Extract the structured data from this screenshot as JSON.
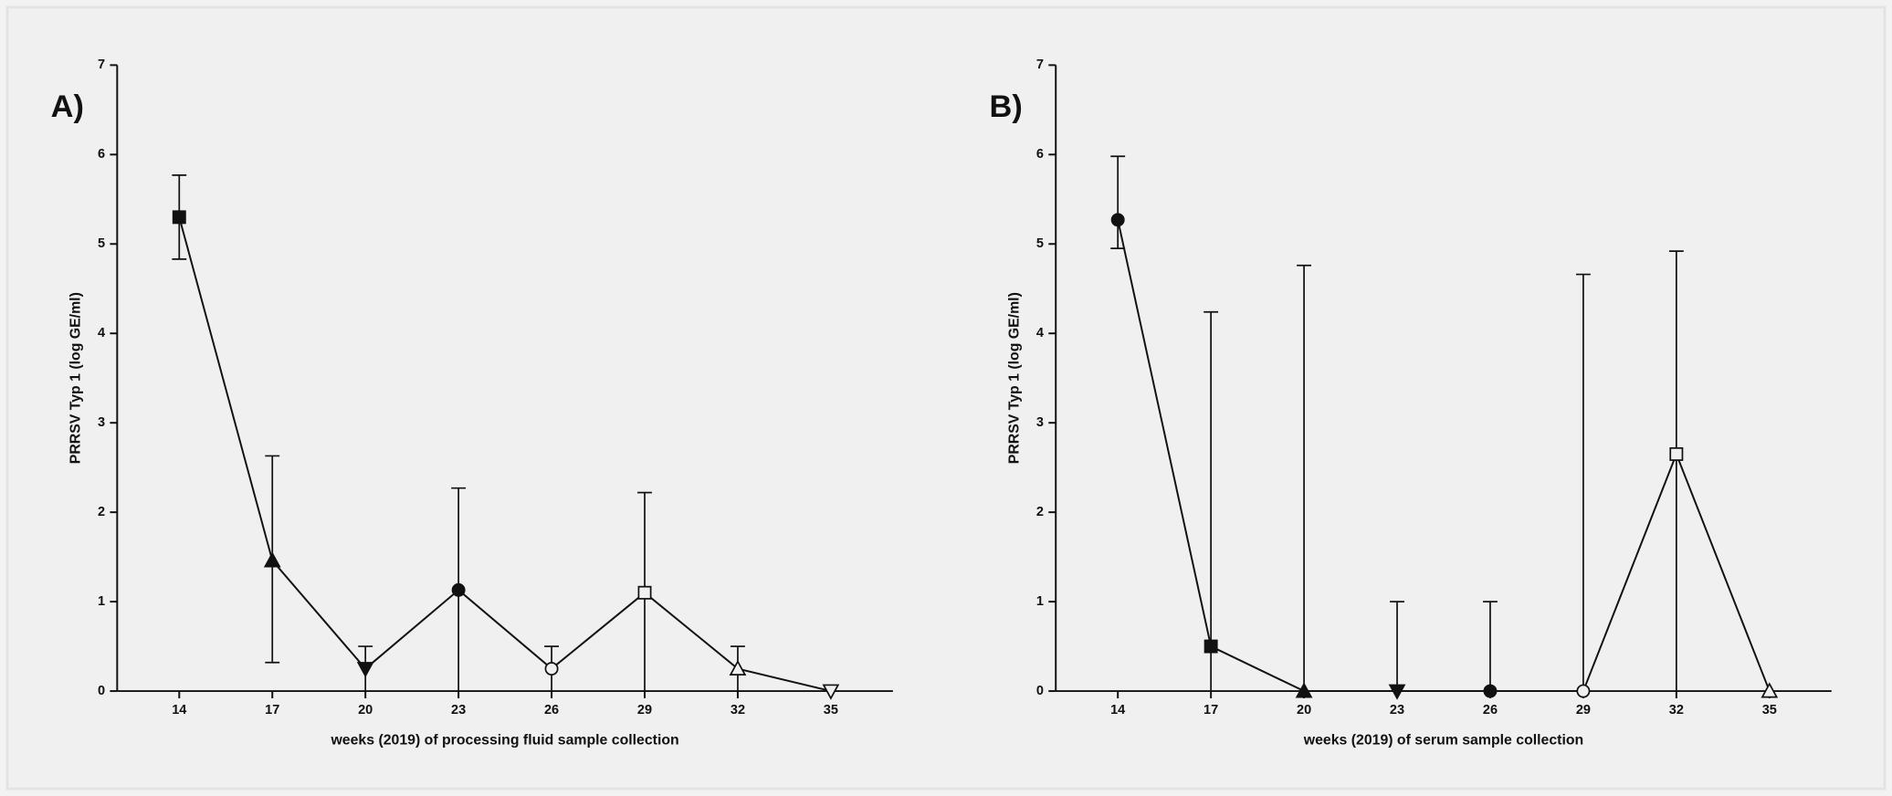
{
  "chart_data": [
    {
      "type": "line",
      "panel_label": "A)",
      "y_label": "PRRSV Typ 1 (log GE/ml)",
      "x_label": "weeks (2019) of processing fluid sample collection",
      "x": [
        14,
        17,
        20,
        23,
        26,
        29,
        32,
        35
      ],
      "values": [
        5.3,
        1.46,
        0.25,
        1.13,
        0.25,
        1.1,
        0.25,
        0
      ],
      "error_high": [
        5.77,
        2.63,
        0.5,
        2.27,
        0.5,
        2.22,
        0.5,
        0
      ],
      "error_low": [
        4.83,
        0.32,
        0,
        0,
        0,
        0,
        0,
        0
      ],
      "markers": [
        "square",
        "triangle",
        "triangle-down",
        "circle",
        "circle-open",
        "square-open",
        "triangle-open",
        "triangle-down-open"
      ],
      "color": "#111111",
      "xlim": [
        12,
        37
      ],
      "xticks": [
        14,
        17,
        20,
        23,
        26,
        29,
        32,
        35
      ],
      "ylim": [
        0,
        7
      ],
      "yticks": [
        0,
        1,
        2,
        3,
        4,
        5,
        6,
        7
      ]
    },
    {
      "type": "line",
      "panel_label": "B)",
      "y_label": "PRRSV Typ 1 (log GE/ml)",
      "x_label": "weeks (2019) of serum sample collection",
      "x": [
        14,
        17,
        20,
        23,
        26,
        29,
        32,
        35
      ],
      "values": [
        5.27,
        0.5,
        0,
        0,
        0,
        0,
        2.65,
        0
      ],
      "error_high": [
        5.98,
        4.24,
        4.76,
        1,
        1,
        4.66,
        4.92,
        0
      ],
      "error_low": [
        4.95,
        0,
        0,
        0,
        0,
        0,
        0,
        0
      ],
      "markers": [
        "circle",
        "square",
        "triangle",
        "triangle-down",
        "circle",
        "circle-open",
        "square-open",
        "triangle-open"
      ],
      "color": "#111111",
      "xlim": [
        12,
        37
      ],
      "xticks": [
        14,
        17,
        20,
        23,
        26,
        29,
        32,
        35
      ],
      "ylim": [
        0,
        7
      ],
      "yticks": [
        0,
        1,
        2,
        3,
        4,
        5,
        6,
        7
      ]
    }
  ]
}
